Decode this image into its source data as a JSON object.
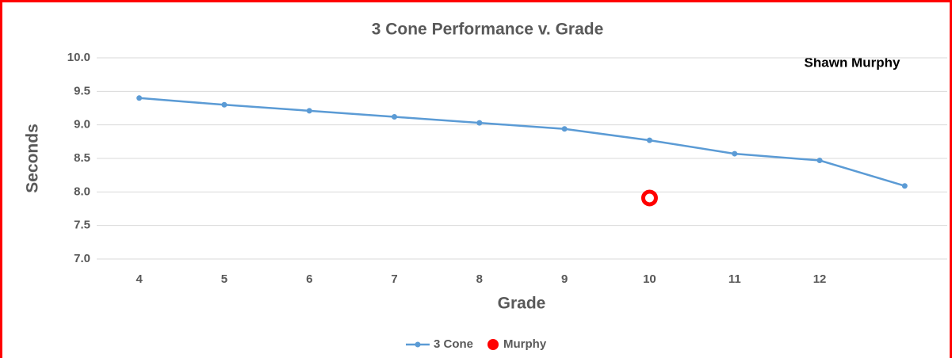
{
  "chart_data": {
    "type": "line",
    "title": "3 Cone Performance v. Grade",
    "annotation": "Shawn Murphy",
    "x_label": "Grade",
    "y_label": "Seconds",
    "categories": [
      "4",
      "5",
      "6",
      "7",
      "8",
      "9",
      "10",
      "11",
      "12",
      null
    ],
    "series": [
      {
        "name": "3 Cone",
        "color": "#5b9bd5",
        "values": [
          9.4,
          9.3,
          9.21,
          9.12,
          9.03,
          8.94,
          8.77,
          8.57,
          8.47,
          8.09
        ]
      },
      {
        "name": "Murphy",
        "color": "#ff0000",
        "values": [
          null,
          null,
          null,
          null,
          null,
          null,
          7.91,
          null,
          null,
          null
        ],
        "marker_only": true
      }
    ],
    "ylim": [
      7,
      10
    ],
    "yticks": [
      {
        "value": 7,
        "label": "7.0"
      },
      {
        "value": 7.5,
        "label": "7.5"
      },
      {
        "value": 8,
        "label": "8.0"
      },
      {
        "value": 8.5,
        "label": "8.5"
      },
      {
        "value": 9,
        "label": "9.0"
      },
      {
        "value": 9.5,
        "label": "9.5"
      },
      {
        "value": 10,
        "label": "10.0"
      }
    ],
    "grid": true,
    "legend": "bottom"
  }
}
